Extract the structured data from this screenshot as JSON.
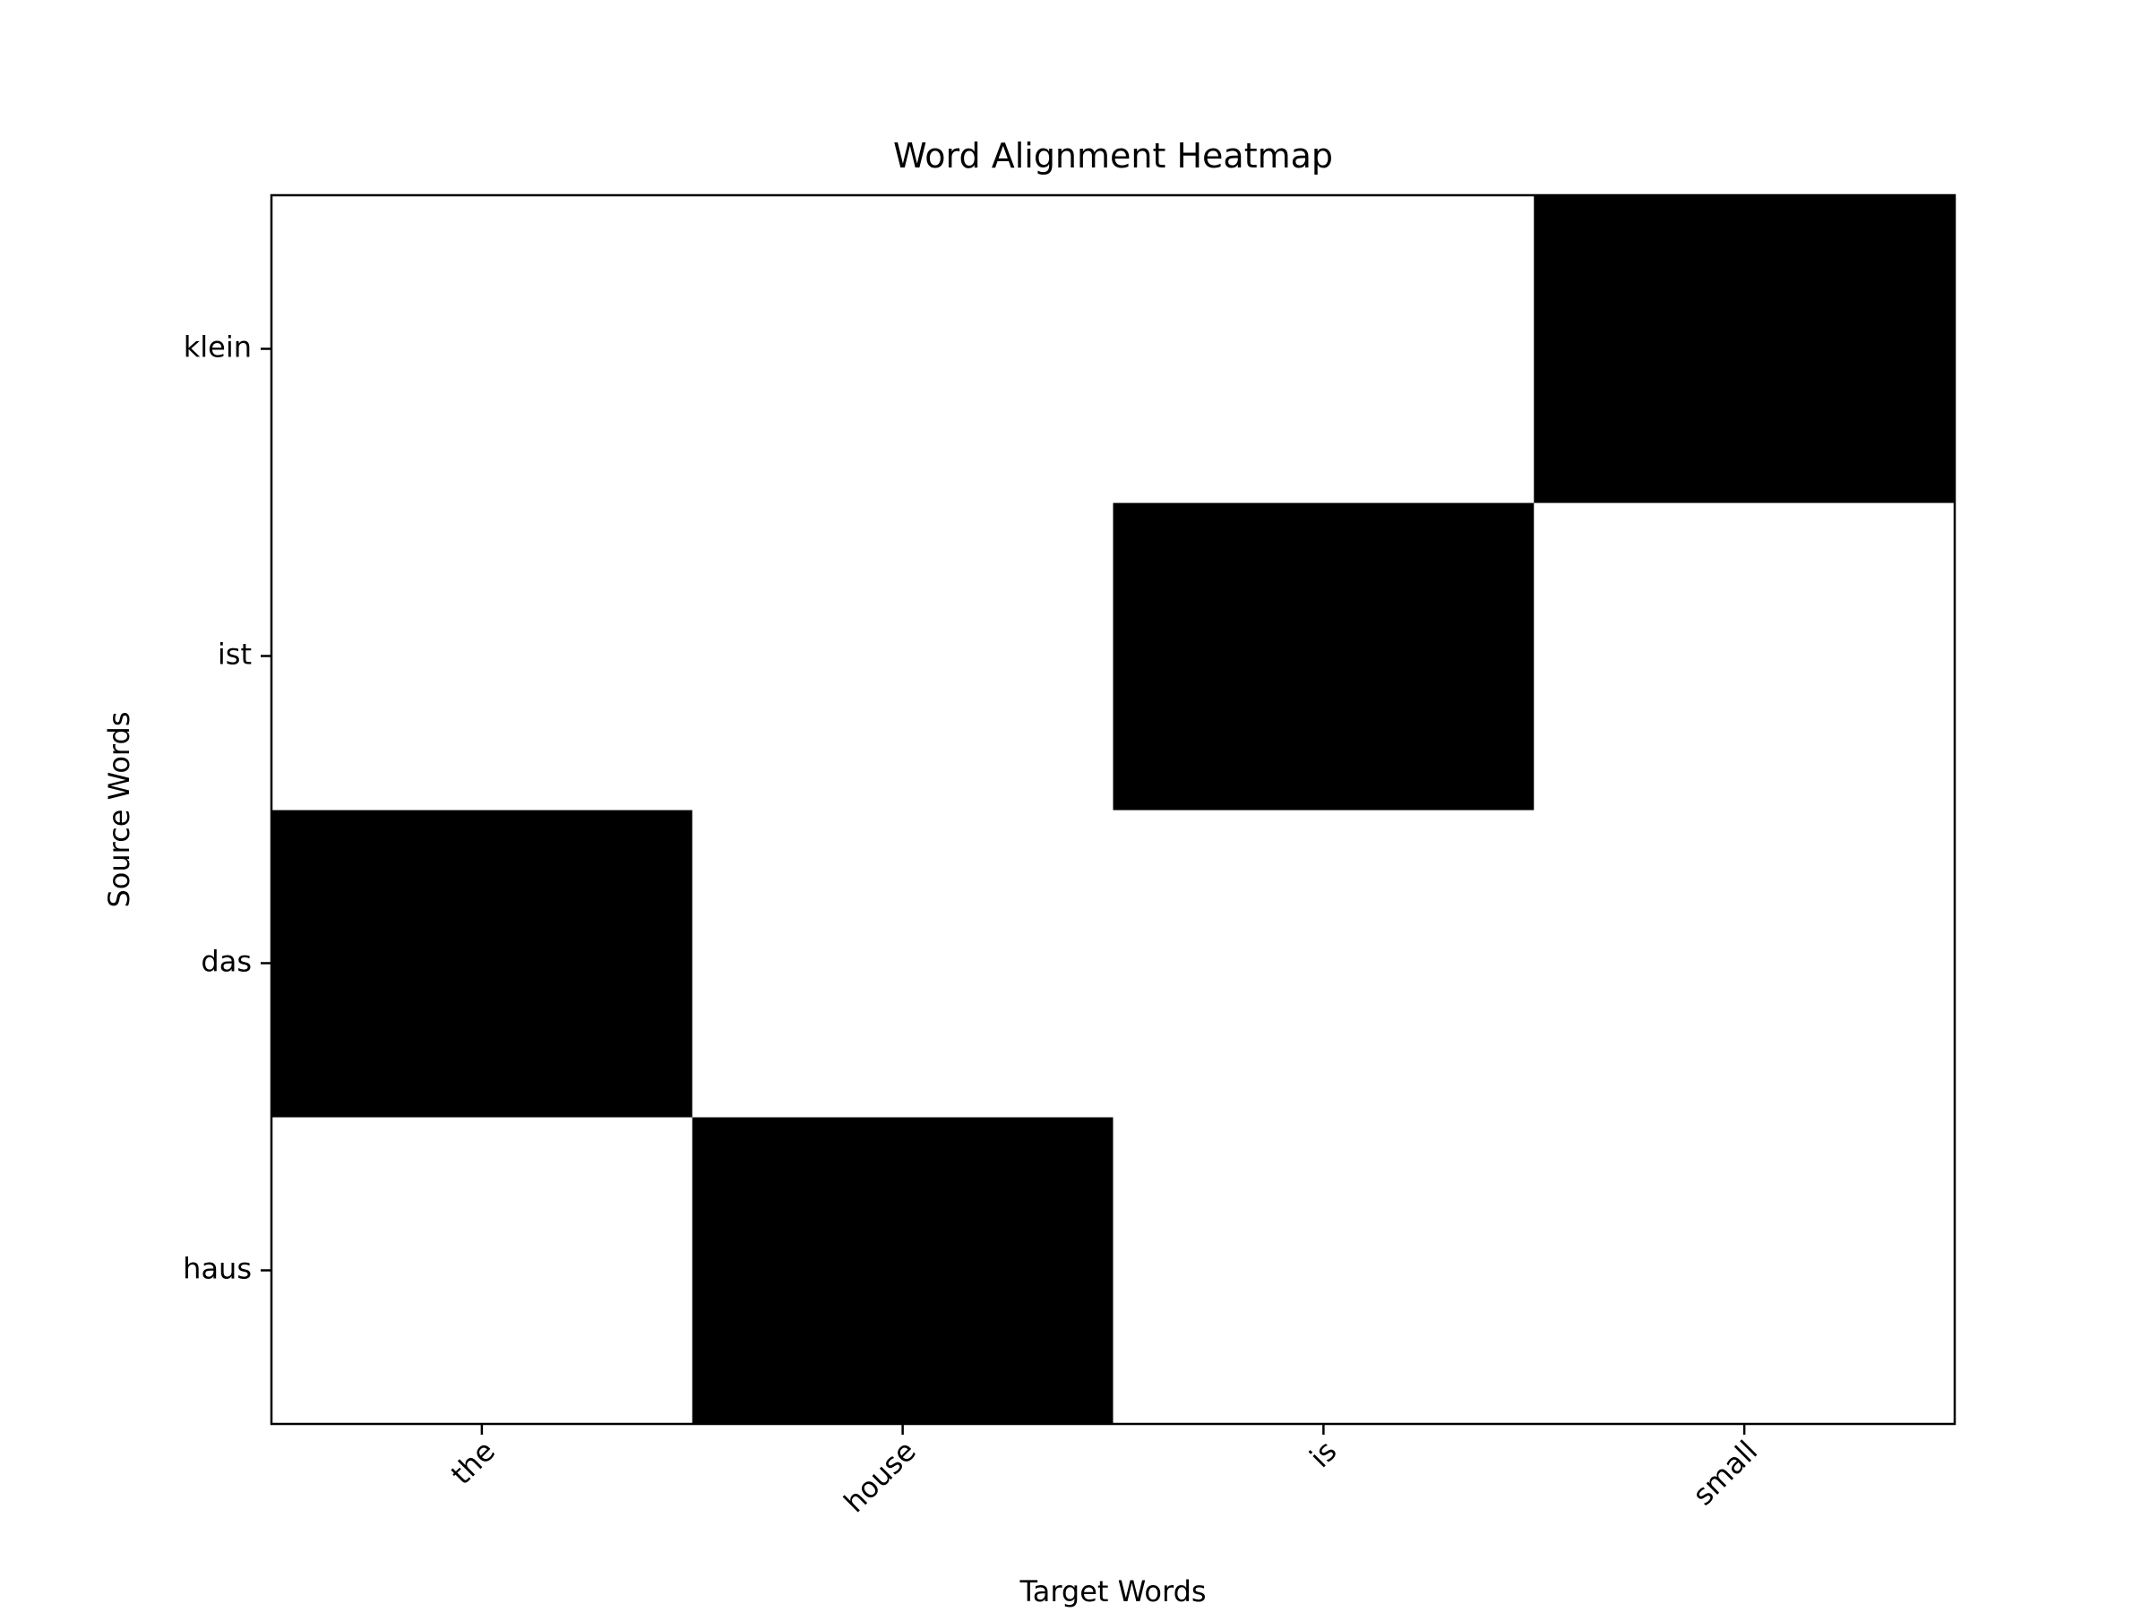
{
  "chart_data": {
    "type": "heatmap",
    "title": "Word Alignment Heatmap",
    "xlabel": "Target Words",
    "ylabel": "Source Words",
    "x_categories": [
      "the",
      "house",
      "is",
      "small"
    ],
    "y_categories": [
      "haus",
      "das",
      "ist",
      "klein"
    ],
    "values": [
      [
        0,
        1,
        0,
        0
      ],
      [
        1,
        0,
        0,
        0
      ],
      [
        0,
        0,
        1,
        0
      ],
      [
        0,
        0,
        0,
        1
      ]
    ],
    "colormap": {
      "low": "#ffffff",
      "high": "#000000"
    },
    "grid": false,
    "legend": "none",
    "x_tick_rotation_deg": 45
  }
}
